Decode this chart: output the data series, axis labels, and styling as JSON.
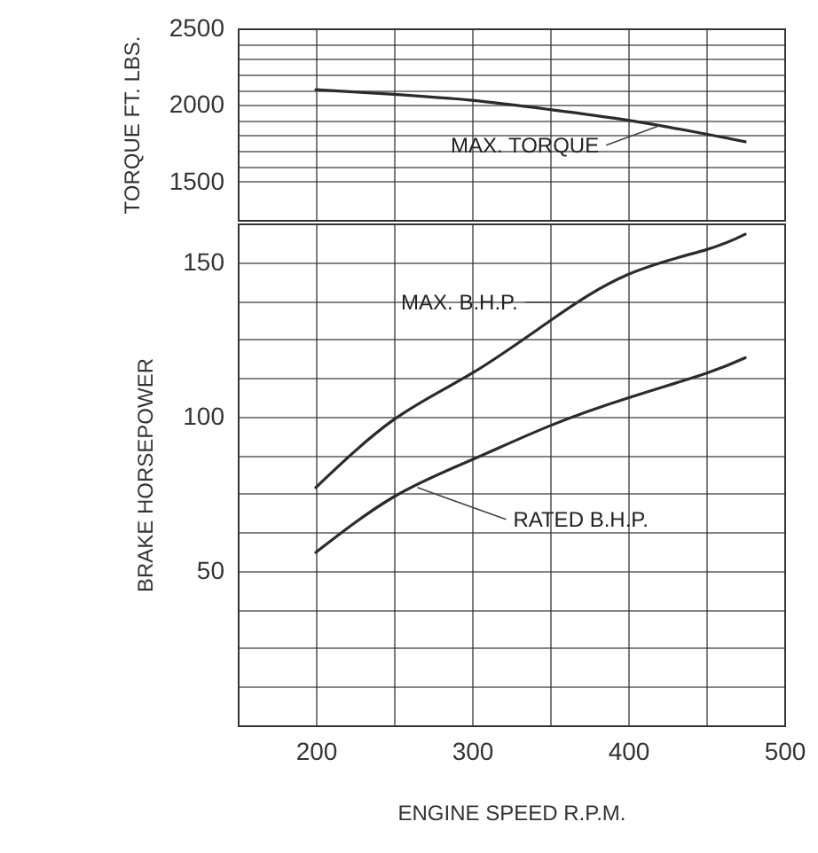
{
  "chart_data": [
    {
      "type": "line",
      "ylabel": "TORQUE FT. LBS.",
      "tick_labels": "y",
      "grid": true,
      "xlim": [
        150,
        500
      ],
      "xticks": [
        {
          "value": 200,
          "label": null
        },
        {
          "value": 250,
          "label": null
        },
        {
          "value": 300,
          "label": null
        },
        {
          "value": 350,
          "label": null
        },
        {
          "value": 400,
          "label": null
        },
        {
          "value": 450,
          "label": null
        }
      ],
      "ylim": [
        1250,
        2500
      ],
      "yticks": [
        1500,
        {
          "value": 1600,
          "label": null
        },
        {
          "value": 1700,
          "label": null
        },
        {
          "value": 1800,
          "label": null
        },
        {
          "value": 1900,
          "label": null
        },
        2000,
        {
          "value": 2100,
          "label": null
        },
        {
          "value": 2200,
          "label": null
        },
        {
          "value": 2300,
          "label": null
        },
        {
          "value": 2400,
          "label": null
        },
        2500
      ],
      "series": [
        {
          "color": "#2b2b2b",
          "x": [
            200,
            250,
            300,
            350,
            400,
            450,
            475
          ],
          "values": [
            2100,
            2070,
            2030,
            1970,
            1900,
            1810,
            1760
          ]
        }
      ],
      "annotations": [
        {
          "text": "MAX. TORQUE",
          "x": 420,
          "y": 1865
        }
      ]
    },
    {
      "type": "line",
      "xlabel": "ENGINE   SPEED   R.P.M.",
      "ylabel": "BRAKE   HORSEPOWER",
      "grid": true,
      "xlim": [
        150,
        500
      ],
      "xticks": [
        200,
        {
          "value": 250,
          "label": null
        },
        300,
        {
          "value": 350,
          "label": null
        },
        400,
        {
          "value": 450,
          "label": null
        },
        500
      ],
      "ylim": [
        0,
        162.5
      ],
      "yticks": [
        {
          "value": 12.5,
          "label": null
        },
        {
          "value": 25,
          "label": null
        },
        {
          "value": 37.5,
          "label": null
        },
        50,
        {
          "value": 62.5,
          "label": null
        },
        {
          "value": 75,
          "label": null
        },
        {
          "value": 87.5,
          "label": null
        },
        100,
        {
          "value": 112.5,
          "label": null
        },
        {
          "value": 125,
          "label": null
        },
        {
          "value": 137.5,
          "label": null
        },
        150
      ],
      "series": [
        {
          "color": "#2b2b2b",
          "x": [
            200,
            250,
            300,
            350,
            400,
            450,
            475
          ],
          "values": [
            77,
            99,
            114,
            131,
            146,
            154,
            159
          ]
        },
        {
          "color": "#2b2b2b",
          "x": [
            200,
            250,
            300,
            350,
            400,
            450,
            475
          ],
          "values": [
            56,
            74,
            86,
            97,
            106,
            114,
            119
          ]
        }
      ],
      "annotations": [
        {
          "text": "MAX. B.H.P.",
          "x": 368,
          "y": 137
        },
        {
          "text": "RATED B.H.P.",
          "x": 265,
          "y": 77
        }
      ]
    }
  ]
}
